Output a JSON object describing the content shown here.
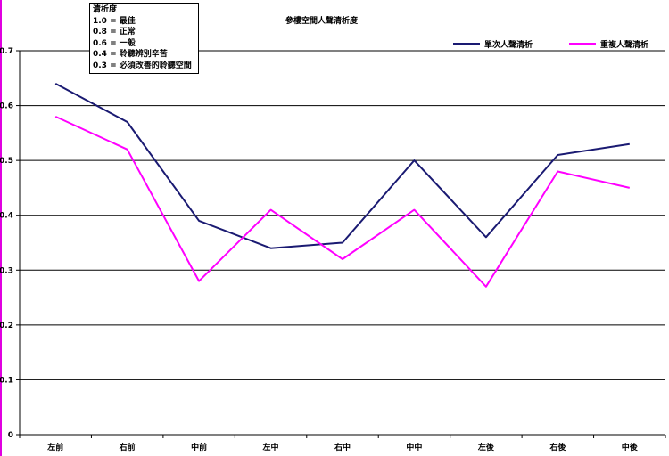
{
  "chart_data": {
    "type": "line",
    "title": "參樓空間人聲清析度",
    "categories": [
      "左前",
      "右前",
      "中前",
      "左中",
      "右中",
      "中中",
      "左後",
      "右後",
      "中後"
    ],
    "series": [
      {
        "name": "單次人聲清析",
        "color": "#1a1a72",
        "values": [
          0.64,
          0.57,
          0.39,
          0.34,
          0.35,
          0.5,
          0.36,
          0.51,
          0.53
        ]
      },
      {
        "name": "重複人聲清析",
        "color": "#ff00ff",
        "values": [
          0.58,
          0.52,
          0.28,
          0.41,
          0.32,
          0.41,
          0.27,
          0.48,
          0.45
        ]
      }
    ],
    "ylim": [
      0,
      0.7
    ],
    "yticks": [
      "0",
      "0.1",
      "0.2",
      "0.3",
      "0.4",
      "0.5",
      "0.6",
      "0.7"
    ],
    "grid": true,
    "legend_position": "top-right",
    "annotation": {
      "lines": [
        "清析度",
        "1.0 = 最佳",
        "0.8 = 正常",
        "0.6 = 一般",
        "0.4 = 聆聽辨別辛苦",
        "0.3 = 必須改善的聆聽空間"
      ]
    }
  }
}
